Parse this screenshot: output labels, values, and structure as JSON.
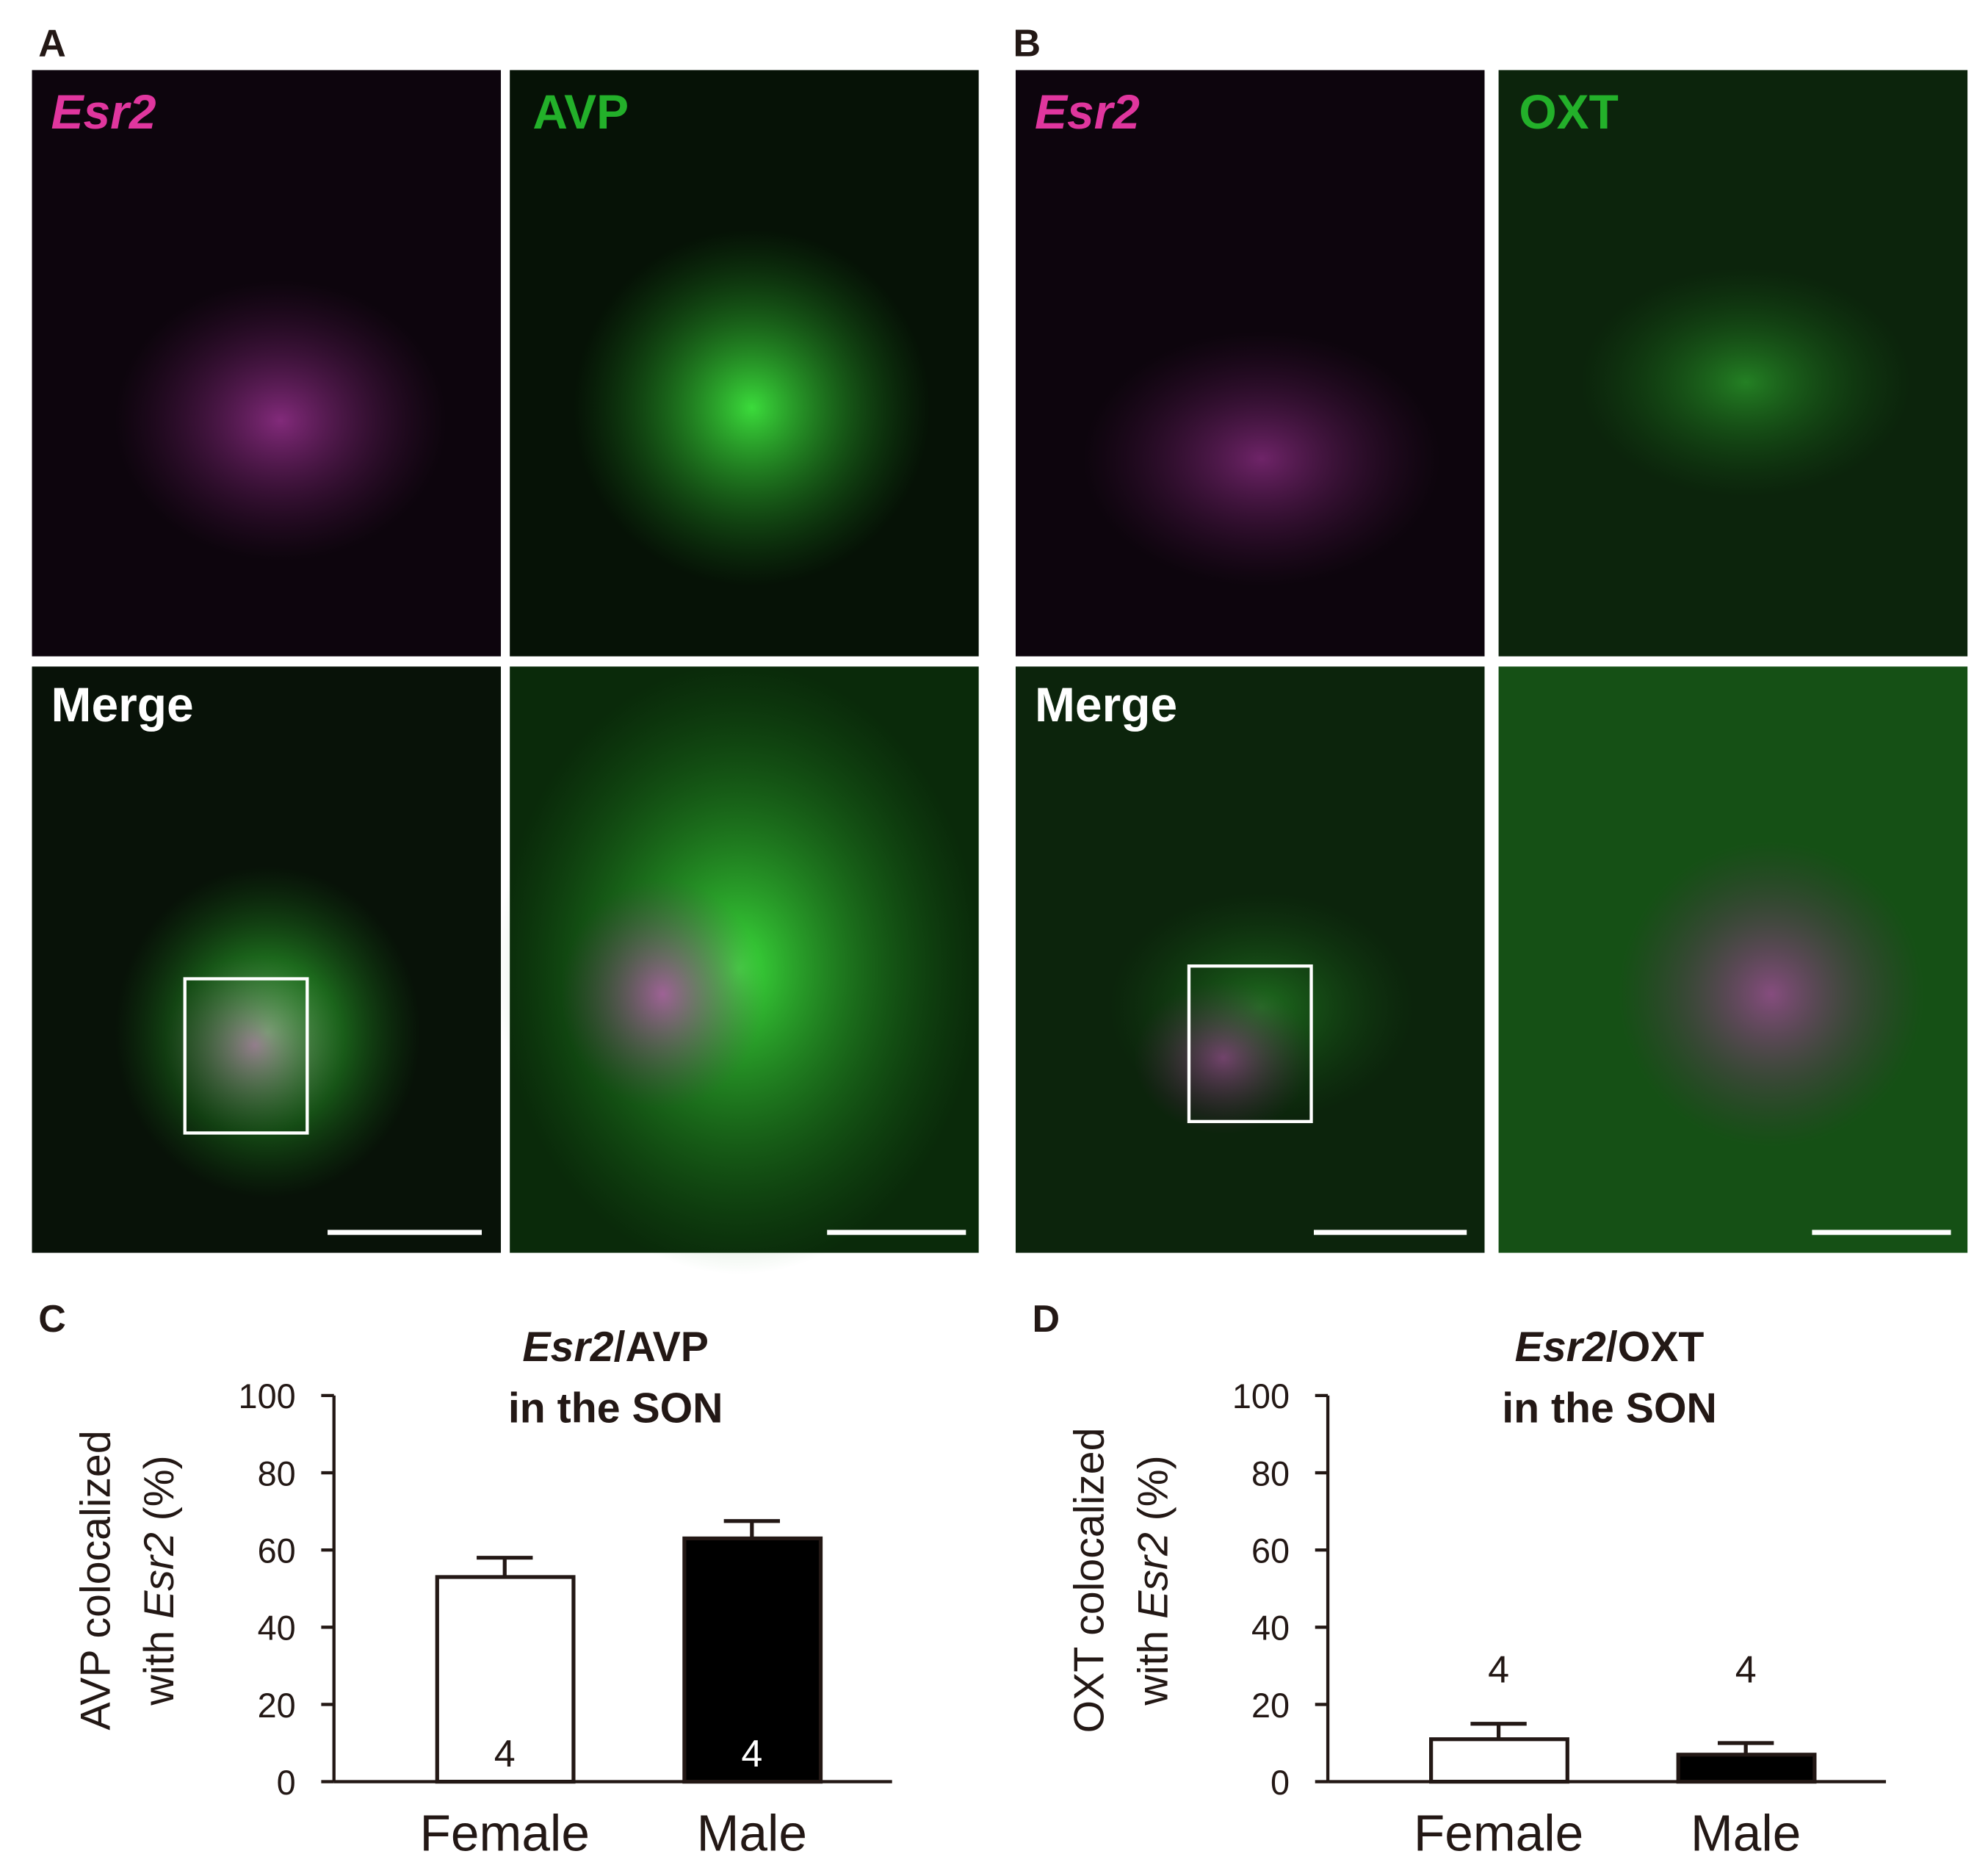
{
  "panels": [
    {
      "letter": "A",
      "labels": [
        "Esr2",
        "AVP",
        "Merge"
      ]
    },
    {
      "letter": "B",
      "labels": [
        "Esr2",
        "OXT",
        "Merge"
      ]
    }
  ],
  "chart_data": [
    {
      "type": "bar",
      "panel": "C",
      "title": {
        "italic": "Esr2",
        "rest": "/AVP",
        "line2": "in the SON"
      },
      "ylabel": {
        "line1": "AVP colocalized",
        "line2a": "with ",
        "line2b": "Esr2",
        "line2c": " (%)"
      },
      "categories": [
        "Female",
        "Male"
      ],
      "values": [
        53,
        63
      ],
      "errors": [
        5,
        4.5
      ],
      "n": [
        4,
        4
      ],
      "colors": [
        "#ffffff",
        "#000000"
      ],
      "ylim": [
        0,
        100
      ],
      "yticks": [
        0,
        20,
        40,
        60,
        80,
        100
      ]
    },
    {
      "type": "bar",
      "panel": "D",
      "title": {
        "italic": "Esr2",
        "rest": "/OXT",
        "line2": "in the SON"
      },
      "ylabel": {
        "line1": "OXT colocalized",
        "line2a": "with ",
        "line2b": "Esr2",
        "line2c": " (%)"
      },
      "categories": [
        "Female",
        "Male"
      ],
      "values": [
        11,
        7
      ],
      "errors": [
        4,
        3
      ],
      "n": [
        4,
        4
      ],
      "colors": [
        "#ffffff",
        "#000000"
      ],
      "ylim": [
        0,
        100
      ],
      "yticks": [
        0,
        20,
        40,
        60,
        80,
        100
      ]
    }
  ]
}
